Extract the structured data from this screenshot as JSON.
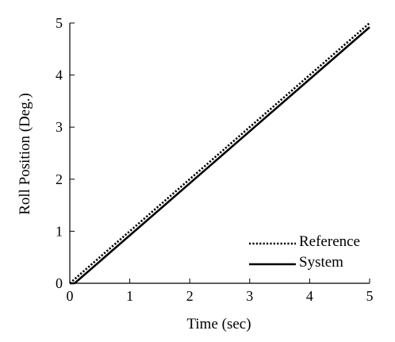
{
  "chart_data": {
    "type": "line",
    "title": "",
    "xlabel": "Time (sec)",
    "ylabel": "Roll Position (Deg.)",
    "xlim": [
      0,
      5
    ],
    "ylim": [
      0,
      5
    ],
    "x_ticks": [
      0,
      1,
      2,
      3,
      4,
      5
    ],
    "y_ticks": [
      0,
      1,
      2,
      3,
      4,
      5
    ],
    "grid": false,
    "legend_position": "bottom-right",
    "series": [
      {
        "name": "Reference",
        "style": "dotted",
        "color": "#000000",
        "x": [
          0,
          5
        ],
        "y": [
          0,
          5
        ]
      },
      {
        "name": "System",
        "style": "solid",
        "color": "#000000",
        "x": [
          0,
          0.08,
          5
        ],
        "y": [
          0,
          0,
          4.92
        ]
      }
    ]
  }
}
